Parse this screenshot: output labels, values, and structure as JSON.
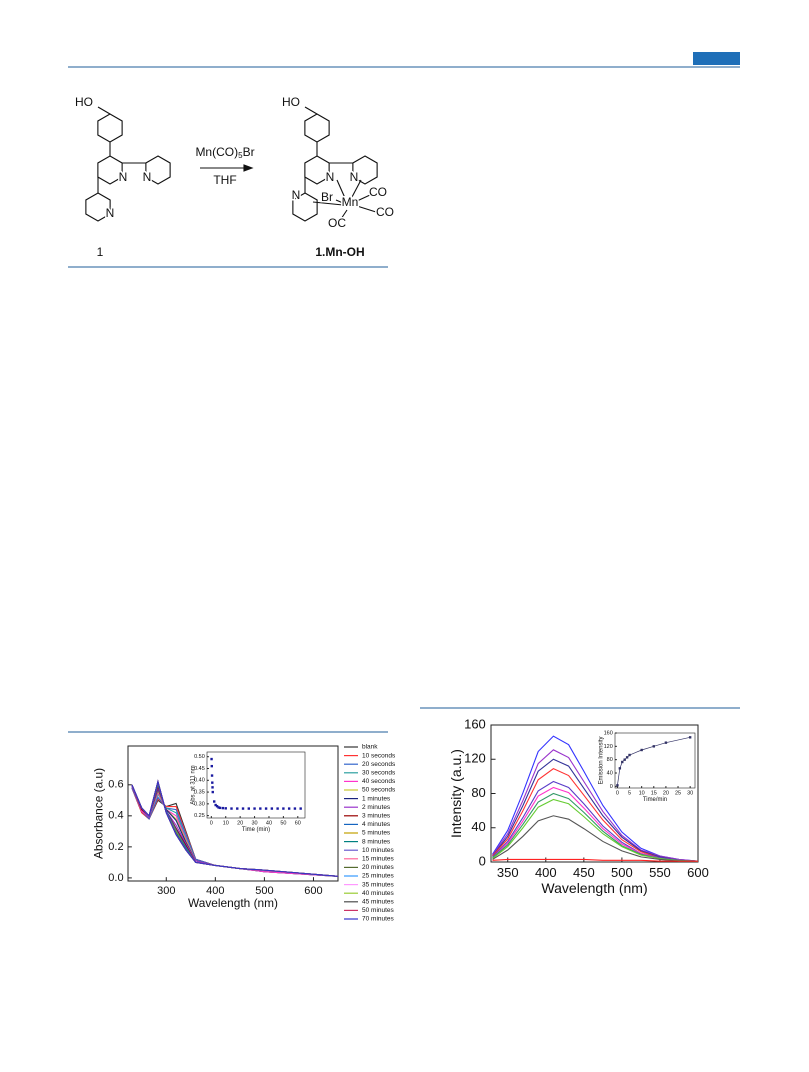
{
  "scheme": {
    "reactant": {
      "label": "1",
      "hydroxyl": "HO",
      "nitrogens": [
        "N",
        "N",
        "N"
      ]
    },
    "reagent": {
      "formula": "Mn(CO)",
      "subscript": "5",
      "suffix": "Br"
    },
    "solvent": "THF",
    "product": {
      "label": "1.Mn-OH",
      "hydroxyl": "HO",
      "nitrogens": [
        "N",
        "N",
        "N"
      ],
      "metal": "Mn",
      "ligands": [
        "Br",
        "CO",
        "CO",
        "OC"
      ]
    }
  },
  "chart_data": [
    {
      "type": "line",
      "x_label": "Wavelength (nm)",
      "y_label": "Absorbance (a.u)",
      "xlim": [
        222,
        650
      ],
      "xticks": [
        300,
        400,
        500,
        600
      ],
      "ylim": [
        -0.02,
        0.85
      ],
      "yticks": [
        {
          "value": 0,
          "label": "0.0"
        },
        0.2,
        0.4,
        0.6
      ],
      "legend": "right",
      "x": [
        230,
        250,
        265,
        283,
        300,
        320,
        340,
        360,
        400,
        450,
        500,
        650
      ],
      "series": [
        {
          "name": "blank",
          "color": "#333333",
          "values": [
            0.58,
            0.42,
            0.38,
            0.5,
            0.46,
            0.48,
            0.3,
            0.12,
            0.08,
            0.06,
            0.04,
            0.01
          ]
        },
        {
          "name": "10 seconds",
          "color": "#ff3333",
          "values": [
            0.58,
            0.42,
            0.38,
            0.51,
            0.46,
            0.46,
            0.29,
            0.12,
            0.08,
            0.06,
            0.04,
            0.01
          ]
        },
        {
          "name": "20 seconds",
          "color": "#3366cc",
          "values": [
            0.58,
            0.43,
            0.38,
            0.52,
            0.45,
            0.44,
            0.28,
            0.12,
            0.08,
            0.06,
            0.04,
            0.01
          ]
        },
        {
          "name": "30 seconds",
          "color": "#2ca0a0",
          "values": [
            0.59,
            0.43,
            0.39,
            0.54,
            0.45,
            0.42,
            0.26,
            0.11,
            0.08,
            0.06,
            0.04,
            0.01
          ]
        },
        {
          "name": "40 seconds",
          "color": "#ff33cc",
          "values": [
            0.59,
            0.43,
            0.39,
            0.55,
            0.44,
            0.4,
            0.25,
            0.11,
            0.08,
            0.06,
            0.04,
            0.01
          ]
        },
        {
          "name": "50 seconds",
          "color": "#c8c830",
          "values": [
            0.59,
            0.44,
            0.39,
            0.56,
            0.44,
            0.38,
            0.24,
            0.11,
            0.08,
            0.06,
            0.05,
            0.01
          ]
        },
        {
          "name": "1 minutes",
          "color": "#1a237e",
          "values": [
            0.59,
            0.44,
            0.39,
            0.57,
            0.44,
            0.37,
            0.23,
            0.11,
            0.08,
            0.06,
            0.05,
            0.01
          ]
        },
        {
          "name": "2 minutes",
          "color": "#9933cc",
          "values": [
            0.59,
            0.44,
            0.39,
            0.58,
            0.43,
            0.34,
            0.22,
            0.11,
            0.08,
            0.06,
            0.05,
            0.01
          ]
        },
        {
          "name": "3 minutes",
          "color": "#990000",
          "values": [
            0.6,
            0.44,
            0.4,
            0.59,
            0.43,
            0.32,
            0.21,
            0.1,
            0.08,
            0.06,
            0.05,
            0.01
          ]
        },
        {
          "name": "4 minutes",
          "color": "#1565c0",
          "values": [
            0.6,
            0.45,
            0.4,
            0.6,
            0.43,
            0.31,
            0.2,
            0.1,
            0.08,
            0.06,
            0.05,
            0.01
          ]
        },
        {
          "name": "5 minutes",
          "color": "#c0a000",
          "values": [
            0.6,
            0.45,
            0.4,
            0.61,
            0.42,
            0.3,
            0.19,
            0.1,
            0.08,
            0.06,
            0.05,
            0.01
          ]
        },
        {
          "name": "8 minutes",
          "color": "#008080",
          "values": [
            0.6,
            0.45,
            0.4,
            0.61,
            0.42,
            0.29,
            0.19,
            0.1,
            0.08,
            0.06,
            0.05,
            0.01
          ]
        },
        {
          "name": "10 minutes",
          "color": "#6a5acd",
          "values": [
            0.6,
            0.45,
            0.4,
            0.62,
            0.42,
            0.28,
            0.18,
            0.1,
            0.08,
            0.06,
            0.05,
            0.01
          ]
        },
        {
          "name": "15 minutes",
          "color": "#ff6699",
          "values": [
            0.6,
            0.45,
            0.4,
            0.62,
            0.42,
            0.28,
            0.18,
            0.1,
            0.08,
            0.06,
            0.05,
            0.01
          ]
        },
        {
          "name": "20 minutes",
          "color": "#556b2f",
          "values": [
            0.6,
            0.45,
            0.4,
            0.62,
            0.42,
            0.28,
            0.18,
            0.1,
            0.08,
            0.06,
            0.05,
            0.01
          ]
        },
        {
          "name": "25 minutes",
          "color": "#3399ff",
          "values": [
            0.6,
            0.45,
            0.4,
            0.62,
            0.42,
            0.28,
            0.18,
            0.1,
            0.08,
            0.06,
            0.05,
            0.01
          ]
        },
        {
          "name": "35 minutes",
          "color": "#ff99ff",
          "values": [
            0.6,
            0.45,
            0.4,
            0.62,
            0.42,
            0.28,
            0.18,
            0.1,
            0.08,
            0.06,
            0.05,
            0.01
          ]
        },
        {
          "name": "40 minutes",
          "color": "#99cc33",
          "values": [
            0.6,
            0.45,
            0.4,
            0.62,
            0.42,
            0.28,
            0.18,
            0.1,
            0.08,
            0.06,
            0.05,
            0.01
          ]
        },
        {
          "name": "45 minutes",
          "color": "#4d4d4d",
          "values": [
            0.6,
            0.45,
            0.4,
            0.62,
            0.42,
            0.28,
            0.18,
            0.1,
            0.08,
            0.06,
            0.05,
            0.01
          ]
        },
        {
          "name": "50 minutes",
          "color": "#cc3366",
          "values": [
            0.6,
            0.45,
            0.4,
            0.62,
            0.42,
            0.28,
            0.18,
            0.1,
            0.08,
            0.06,
            0.05,
            0.01
          ]
        },
        {
          "name": "70 minutes",
          "color": "#3333cc",
          "values": [
            0.6,
            0.45,
            0.4,
            0.62,
            0.42,
            0.28,
            0.18,
            0.1,
            0.08,
            0.06,
            0.05,
            0.01
          ]
        }
      ]
    },
    {
      "type": "scatter",
      "x_label": "Time (min)",
      "y_label": "Abs. at 311 nm",
      "xlim": [
        -3,
        65
      ],
      "xticks": [
        0,
        10,
        20,
        30,
        40,
        50,
        60
      ],
      "ylim": [
        0.24,
        0.52
      ],
      "yticks": [
        0.25,
        {
          "value": 0.3,
          "label": "0.30"
        },
        0.35,
        {
          "value": 0.4,
          "label": "0.40"
        },
        0.45,
        {
          "value": 0.5,
          "label": "0.50"
        }
      ],
      "color": "#1a1aa0",
      "x": [
        0.17,
        0.33,
        0.5,
        0.67,
        0.83,
        1,
        2,
        3,
        4,
        5,
        6,
        8,
        10,
        14,
        18,
        22,
        26,
        30,
        34,
        38,
        42,
        46,
        50,
        54,
        58,
        62
      ],
      "values": [
        0.49,
        0.46,
        0.42,
        0.39,
        0.37,
        0.35,
        0.31,
        0.295,
        0.29,
        0.285,
        0.283,
        0.282,
        0.281,
        0.28,
        0.28,
        0.28,
        0.28,
        0.28,
        0.28,
        0.28,
        0.28,
        0.28,
        0.28,
        0.28,
        0.28,
        0.28
      ]
    },
    {
      "type": "line",
      "x_label": "Wavelength (nm)",
      "y_label": "Intensity (a.u.)",
      "xlim": [
        328,
        600
      ],
      "xticks": [
        350,
        400,
        450,
        500,
        550,
        600
      ],
      "ylim": [
        0,
        160
      ],
      "yticks": [
        0,
        40,
        80,
        120,
        160
      ],
      "x": [
        330,
        350,
        370,
        390,
        410,
        430,
        450,
        475,
        500,
        525,
        550,
        575,
        600
      ],
      "series": [
        {
          "color": "#3333ff",
          "values": [
            9,
            37,
            81,
            129,
            147,
            137,
            106,
            66,
            35,
            16,
            7,
            3,
            1
          ]
        },
        {
          "color": "#9933cc",
          "values": [
            8,
            33,
            72,
            115,
            131,
            122,
            94,
            59,
            31,
            14,
            7,
            3,
            1
          ]
        },
        {
          "color": "#333399",
          "values": [
            7,
            30,
            66,
            106,
            120,
            112,
            86,
            54,
            29,
            13,
            6,
            2,
            1
          ]
        },
        {
          "color": "#ff3333",
          "values": [
            7,
            27,
            60,
            96,
            109,
            101,
            78,
            49,
            26,
            12,
            5,
            2,
            1
          ]
        },
        {
          "color": "#5a3cc8",
          "values": [
            6,
            24,
            52,
            83,
            94,
            87,
            68,
            42,
            23,
            10,
            5,
            2,
            1
          ]
        },
        {
          "color": "#ff33cc",
          "values": [
            5,
            22,
            48,
            77,
            87,
            81,
            63,
            39,
            21,
            10,
            4,
            2,
            1
          ]
        },
        {
          "color": "#339966",
          "values": [
            5,
            20,
            44,
            70,
            80,
            74,
            58,
            36,
            19,
            9,
            4,
            2,
            1
          ]
        },
        {
          "color": "#66cc33",
          "values": [
            4,
            18,
            40,
            64,
            73,
            68,
            53,
            33,
            18,
            8,
            4,
            1,
            1
          ]
        },
        {
          "color": "#555555",
          "values": [
            3,
            14,
            30,
            48,
            54,
            50,
            39,
            24,
            13,
            6,
            3,
            1,
            1
          ]
        },
        {
          "color": "#ff2222",
          "values": [
            2,
            3,
            3,
            3,
            3,
            3,
            3,
            2,
            2,
            2,
            1,
            1,
            1
          ]
        }
      ]
    },
    {
      "type": "line",
      "markers": true,
      "x_label": "Time/min",
      "y_label": "Emission Intensity",
      "xlim": [
        -1,
        32
      ],
      "xticks": [
        0,
        5,
        10,
        15,
        20,
        25,
        30
      ],
      "ylim": [
        -5,
        160
      ],
      "yticks": [
        0,
        40,
        80,
        120,
        160
      ],
      "color": "#333366",
      "x": [
        0,
        1,
        2,
        3,
        4,
        5,
        10,
        15,
        20,
        30
      ],
      "values": [
        3,
        54,
        73,
        80,
        87,
        94,
        109,
        120,
        131,
        147
      ]
    }
  ]
}
